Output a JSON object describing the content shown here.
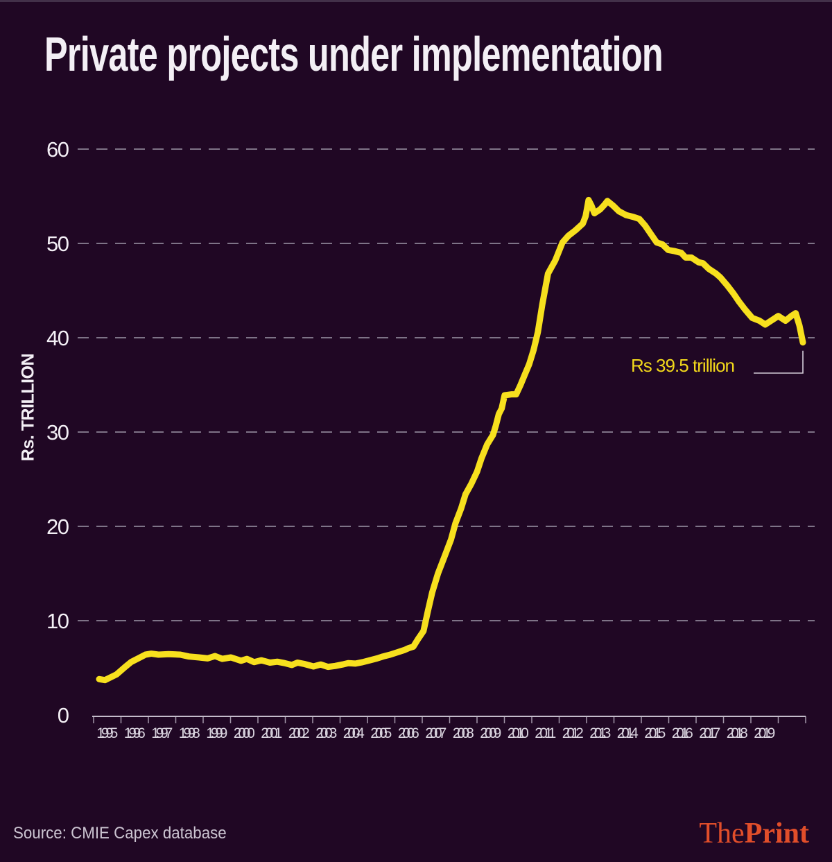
{
  "title": "Private projects under implementation",
  "y_axis_label": "Rs. TRILLION",
  "annotation": {
    "label": "Rs 39.5 trillion"
  },
  "footer": {
    "source": "Source: CMIE Capex database",
    "logo_the": "The",
    "logo_print": "Print"
  },
  "colors": {
    "background": "#200724",
    "line": "#f7e01e",
    "gridline": "#8f8699",
    "axis": "#c4bccb",
    "tick_label": "#d9d3de",
    "y_label": "#f3eff5",
    "annotation": "#f2d81b",
    "callout": "#d5cdda",
    "logo": "#e14e2a"
  },
  "chart_data": {
    "type": "line",
    "title": "Private projects under implementation",
    "xlabel": "",
    "ylabel": "Rs. TRILLION",
    "x_ticks": [
      "1995",
      "1996",
      "1997",
      "1998",
      "1999",
      "2000",
      "2001",
      "2002",
      "2003",
      "2004",
      "2005",
      "2006",
      "2007",
      "2008",
      "2009",
      "2010",
      "2011",
      "2012",
      "2013",
      "2014",
      "2015",
      "2016",
      "2017",
      "2018",
      "2019"
    ],
    "y_ticks": [
      0,
      10,
      20,
      30,
      40,
      50,
      60
    ],
    "ylim": [
      0,
      62
    ],
    "xlim": [
      1995,
      2020
    ],
    "grid": "horizontal-dashed",
    "legend": "none",
    "annotation": {
      "label": "Rs 39.5 trillion",
      "x": 2019.5,
      "y": 39.5
    },
    "series": [
      {
        "name": "Private projects under implementation (Rs trillion)",
        "color": "#f7e01e",
        "points": [
          [
            1995.2,
            3.8
          ],
          [
            1995.4,
            3.7
          ],
          [
            1995.6,
            4.0
          ],
          [
            1995.8,
            4.3
          ],
          [
            1996.1,
            5.1
          ],
          [
            1996.3,
            5.6
          ],
          [
            1996.55,
            6.0
          ],
          [
            1996.8,
            6.4
          ],
          [
            1997.0,
            6.5
          ],
          [
            1997.25,
            6.4
          ],
          [
            1997.6,
            6.45
          ],
          [
            1998.0,
            6.4
          ],
          [
            1998.3,
            6.2
          ],
          [
            1998.65,
            6.1
          ],
          [
            1998.95,
            6.0
          ],
          [
            1999.2,
            6.25
          ],
          [
            1999.45,
            5.95
          ],
          [
            1999.75,
            6.1
          ],
          [
            2000.1,
            5.75
          ],
          [
            2000.3,
            5.95
          ],
          [
            2000.55,
            5.6
          ],
          [
            2000.8,
            5.8
          ],
          [
            2001.1,
            5.55
          ],
          [
            2001.35,
            5.65
          ],
          [
            2001.6,
            5.5
          ],
          [
            2001.85,
            5.3
          ],
          [
            2002.05,
            5.55
          ],
          [
            2002.3,
            5.4
          ],
          [
            2002.6,
            5.15
          ],
          [
            2002.85,
            5.35
          ],
          [
            2003.1,
            5.1
          ],
          [
            2003.35,
            5.2
          ],
          [
            2003.6,
            5.35
          ],
          [
            2003.8,
            5.5
          ],
          [
            2004.05,
            5.45
          ],
          [
            2004.3,
            5.6
          ],
          [
            2004.55,
            5.8
          ],
          [
            2004.8,
            6.0
          ],
          [
            2005.0,
            6.2
          ],
          [
            2005.25,
            6.4
          ],
          [
            2005.5,
            6.65
          ],
          [
            2005.75,
            6.9
          ],
          [
            2005.9,
            7.1
          ],
          [
            2006.05,
            7.25
          ],
          [
            2006.2,
            8.0
          ],
          [
            2006.4,
            8.9
          ],
          [
            2006.55,
            11.0
          ],
          [
            2006.7,
            13.0
          ],
          [
            2006.9,
            15.0
          ],
          [
            2007.1,
            16.6
          ],
          [
            2007.35,
            18.6
          ],
          [
            2007.5,
            20.3
          ],
          [
            2007.7,
            21.9
          ],
          [
            2007.85,
            23.4
          ],
          [
            2008.05,
            24.5
          ],
          [
            2008.25,
            25.8
          ],
          [
            2008.4,
            27.2
          ],
          [
            2008.6,
            28.7
          ],
          [
            2008.8,
            29.7
          ],
          [
            2008.9,
            30.7
          ],
          [
            2009.0,
            31.9
          ],
          [
            2009.1,
            32.5
          ],
          [
            2009.2,
            33.9
          ],
          [
            2009.45,
            34.0
          ],
          [
            2009.6,
            34.0
          ],
          [
            2009.75,
            35.0
          ],
          [
            2009.9,
            36.1
          ],
          [
            2010.05,
            37.2
          ],
          [
            2010.2,
            38.7
          ],
          [
            2010.35,
            40.6
          ],
          [
            2010.5,
            43.5
          ],
          [
            2010.7,
            46.8
          ],
          [
            2010.95,
            48.2
          ],
          [
            2011.2,
            50.1
          ],
          [
            2011.4,
            50.8
          ],
          [
            2011.65,
            51.4
          ],
          [
            2011.9,
            52.1
          ],
          [
            2012.0,
            52.9
          ],
          [
            2012.1,
            54.6
          ],
          [
            2012.2,
            54.0
          ],
          [
            2012.3,
            53.2
          ],
          [
            2012.5,
            53.6
          ],
          [
            2012.65,
            54.1
          ],
          [
            2012.75,
            54.5
          ],
          [
            2012.95,
            54.0
          ],
          [
            2013.15,
            53.4
          ],
          [
            2013.4,
            53.0
          ],
          [
            2013.65,
            52.8
          ],
          [
            2013.85,
            52.6
          ],
          [
            2014.05,
            51.9
          ],
          [
            2014.25,
            51.0
          ],
          [
            2014.45,
            50.1
          ],
          [
            2014.65,
            49.9
          ],
          [
            2014.85,
            49.3
          ],
          [
            2015.05,
            49.2
          ],
          [
            2015.3,
            49.0
          ],
          [
            2015.45,
            48.5
          ],
          [
            2015.65,
            48.5
          ],
          [
            2015.9,
            48.0
          ],
          [
            2016.05,
            47.9
          ],
          [
            2016.25,
            47.3
          ],
          [
            2016.5,
            46.8
          ],
          [
            2016.65,
            46.4
          ],
          [
            2016.9,
            45.5
          ],
          [
            2017.1,
            44.7
          ],
          [
            2017.3,
            43.8
          ],
          [
            2017.5,
            43.0
          ],
          [
            2017.75,
            42.1
          ],
          [
            2018.0,
            41.8
          ],
          [
            2018.2,
            41.4
          ],
          [
            2018.4,
            41.8
          ],
          [
            2018.65,
            42.3
          ],
          [
            2018.9,
            41.8
          ],
          [
            2019.1,
            42.3
          ],
          [
            2019.25,
            42.6
          ],
          [
            2019.38,
            41.3
          ],
          [
            2019.5,
            39.5
          ]
        ]
      }
    ]
  }
}
